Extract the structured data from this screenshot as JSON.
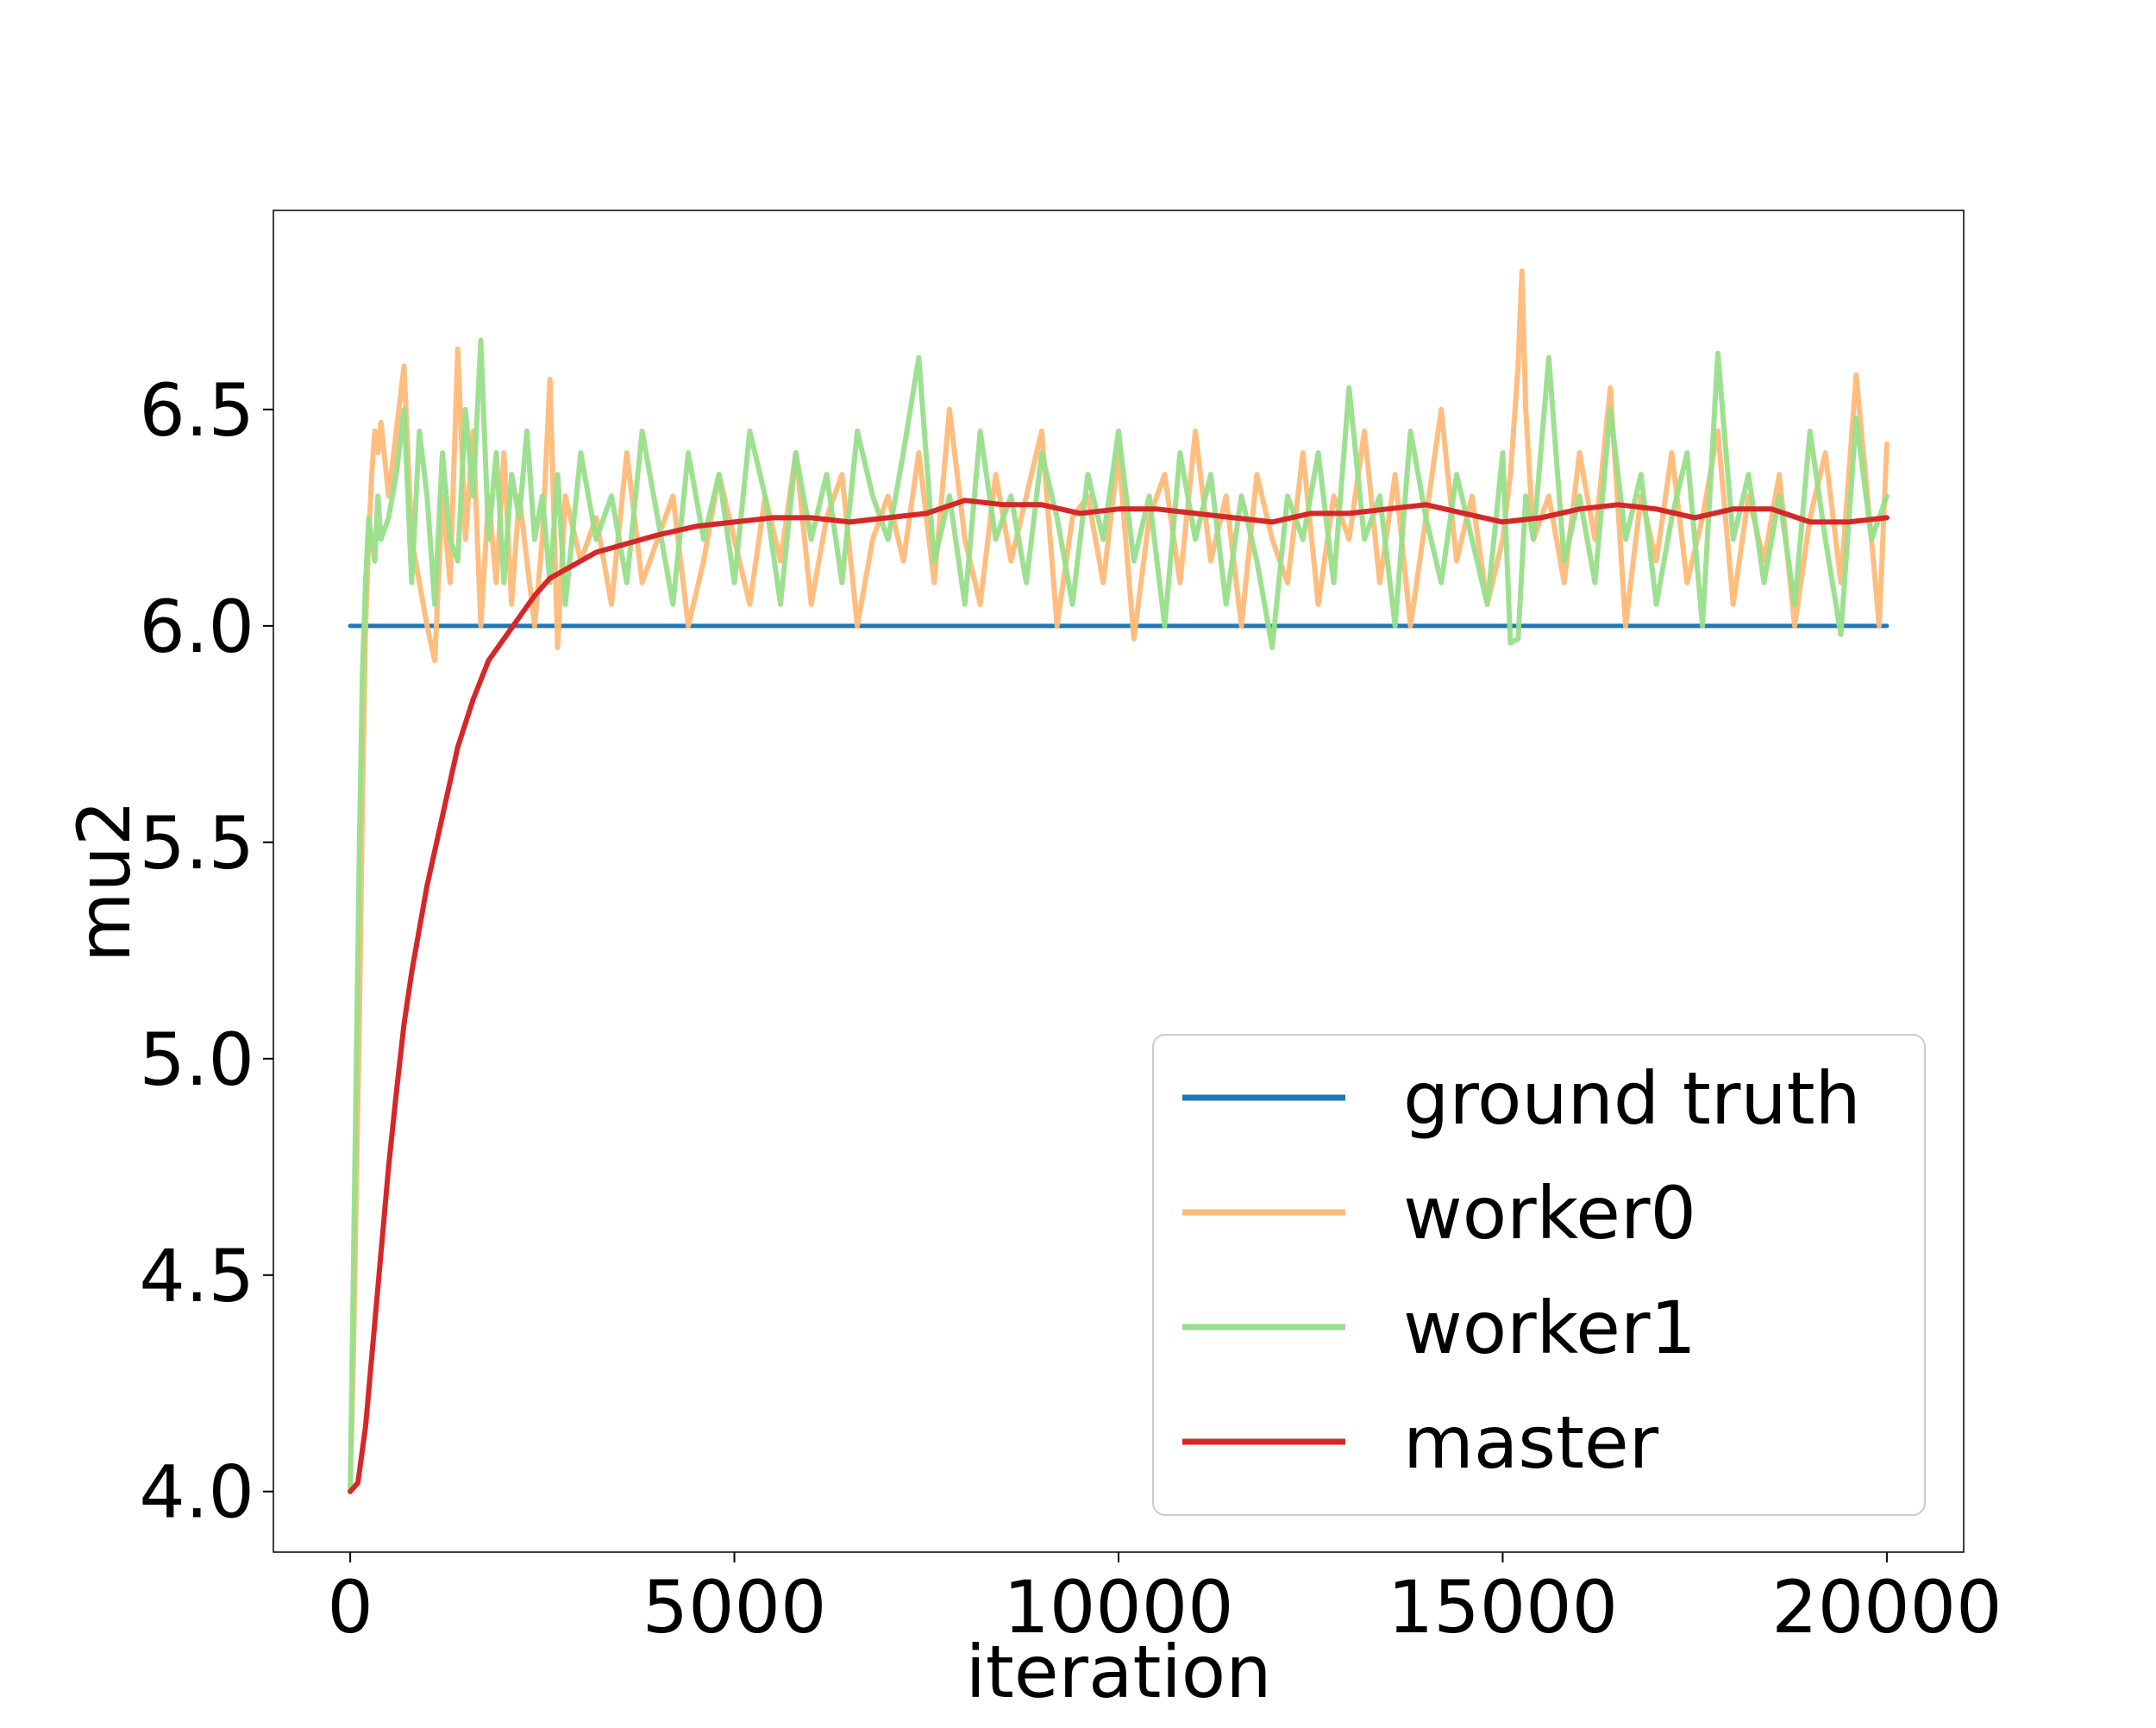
{
  "chart_data": {
    "type": "line",
    "title": "",
    "xlabel": "iteration",
    "ylabel": "mu2",
    "xlim": [
      -1000,
      21000
    ],
    "ylim": [
      3.86,
      6.96
    ],
    "xticks": [
      0,
      5000,
      10000,
      15000,
      20000
    ],
    "xtick_labels": [
      "0",
      "5000",
      "10000",
      "15000",
      "20000"
    ],
    "yticks": [
      4.0,
      4.5,
      5.0,
      5.5,
      6.0,
      6.5
    ],
    "ytick_labels": [
      "4.0",
      "4.5",
      "5.0",
      "5.5",
      "6.0",
      "6.5"
    ],
    "grid": false,
    "legend_position": "lower-right",
    "series": [
      {
        "name": "ground truth",
        "color": "#1f77b4",
        "x": [
          0,
          20000
        ],
        "y": [
          6.0,
          6.0
        ]
      },
      {
        "name": "worker0",
        "color": "#ffbb78",
        "x": [
          0,
          40,
          80,
          120,
          160,
          200,
          240,
          280,
          320,
          360,
          400,
          500,
          600,
          700,
          800,
          900,
          1000,
          1100,
          1200,
          1300,
          1400,
          1500,
          1600,
          1700,
          1800,
          1900,
          2000,
          2100,
          2200,
          2300,
          2400,
          2500,
          2600,
          2700,
          2800,
          3000,
          3200,
          3400,
          3600,
          3800,
          4000,
          4200,
          4400,
          4600,
          4800,
          5000,
          5200,
          5400,
          5600,
          5800,
          6000,
          6200,
          6400,
          6600,
          6800,
          7000,
          7200,
          7400,
          7600,
          7800,
          8000,
          8200,
          8400,
          8600,
          8800,
          9000,
          9200,
          9400,
          9600,
          9800,
          10000,
          10200,
          10400,
          10600,
          10800,
          11000,
          11200,
          11400,
          11600,
          11800,
          12000,
          12200,
          12400,
          12600,
          12800,
          13000,
          13200,
          13400,
          13600,
          13800,
          14000,
          14200,
          14400,
          14600,
          14800,
          15000,
          15100,
          15200,
          15250,
          15300,
          15400,
          15600,
          15800,
          16000,
          16200,
          16400,
          16600,
          16800,
          17000,
          17200,
          17400,
          17600,
          17800,
          18000,
          18200,
          18400,
          18600,
          18800,
          19000,
          19200,
          19400,
          19600,
          19800,
          19900,
          20000
        ],
        "y": [
          4.0,
          4.3,
          4.7,
          5.1,
          5.6,
          6.0,
          6.2,
          6.35,
          6.45,
          6.4,
          6.47,
          6.3,
          6.45,
          6.6,
          6.2,
          6.1,
          6.0,
          5.92,
          6.3,
          6.1,
          6.64,
          6.2,
          6.45,
          6.0,
          6.3,
          6.1,
          6.4,
          6.05,
          6.3,
          6.15,
          6.0,
          6.2,
          6.57,
          5.95,
          6.3,
          6.15,
          6.25,
          6.05,
          6.4,
          6.1,
          6.2,
          6.3,
          6.0,
          6.15,
          6.35,
          6.2,
          6.05,
          6.3,
          6.15,
          6.4,
          6.05,
          6.25,
          6.35,
          6.0,
          6.2,
          6.3,
          6.15,
          6.4,
          6.1,
          6.5,
          6.2,
          6.05,
          6.35,
          6.15,
          6.3,
          6.45,
          6.0,
          6.25,
          6.3,
          6.1,
          6.4,
          5.97,
          6.25,
          6.35,
          6.1,
          6.45,
          6.15,
          6.3,
          6.0,
          6.35,
          6.2,
          6.1,
          6.4,
          6.05,
          6.3,
          6.2,
          6.45,
          6.1,
          6.35,
          6.0,
          6.25,
          6.5,
          6.15,
          6.3,
          6.05,
          6.2,
          6.35,
          6.6,
          6.82,
          6.5,
          6.2,
          6.3,
          6.1,
          6.4,
          6.2,
          6.55,
          6.0,
          6.3,
          6.15,
          6.4,
          6.1,
          6.25,
          6.45,
          6.05,
          6.3,
          6.15,
          6.35,
          6.0,
          6.25,
          6.4,
          6.1,
          6.58,
          6.2,
          6.0,
          6.42
        ]
      },
      {
        "name": "worker1",
        "color": "#98df8a",
        "x": [
          0,
          40,
          80,
          120,
          160,
          200,
          240,
          280,
          320,
          360,
          400,
          500,
          600,
          700,
          800,
          900,
          1000,
          1100,
          1200,
          1300,
          1400,
          1500,
          1600,
          1700,
          1800,
          1900,
          2000,
          2100,
          2200,
          2300,
          2400,
          2500,
          2600,
          2700,
          2800,
          3000,
          3200,
          3400,
          3600,
          3800,
          4000,
          4200,
          4400,
          4600,
          4800,
          5000,
          5200,
          5400,
          5600,
          5800,
          6000,
          6200,
          6400,
          6600,
          6800,
          7000,
          7200,
          7400,
          7600,
          7800,
          8000,
          8200,
          8400,
          8600,
          8800,
          9000,
          9200,
          9400,
          9600,
          9800,
          10000,
          10200,
          10400,
          10600,
          10800,
          11000,
          11200,
          11400,
          11600,
          11800,
          12000,
          12200,
          12400,
          12600,
          12800,
          13000,
          13200,
          13400,
          13600,
          13800,
          14000,
          14200,
          14400,
          14600,
          14800,
          15000,
          15100,
          15200,
          15300,
          15400,
          15600,
          15800,
          16000,
          16200,
          16400,
          16600,
          16800,
          17000,
          17200,
          17400,
          17600,
          17800,
          18000,
          18200,
          18400,
          18600,
          18800,
          19000,
          19200,
          19400,
          19600,
          19800,
          19900,
          20000
        ],
        "y": [
          4.0,
          4.5,
          5.0,
          5.5,
          5.9,
          6.1,
          6.25,
          6.2,
          6.15,
          6.3,
          6.2,
          6.25,
          6.35,
          6.5,
          6.1,
          6.45,
          6.3,
          6.05,
          6.4,
          6.2,
          6.15,
          6.5,
          6.3,
          6.66,
          6.2,
          6.4,
          6.1,
          6.35,
          6.25,
          6.45,
          6.2,
          6.3,
          6.1,
          6.35,
          6.05,
          6.4,
          6.2,
          6.3,
          6.1,
          6.45,
          6.25,
          6.05,
          6.4,
          6.2,
          6.35,
          6.1,
          6.45,
          6.3,
          6.05,
          6.4,
          6.2,
          6.35,
          6.1,
          6.45,
          6.3,
          6.2,
          6.4,
          6.62,
          6.15,
          6.3,
          6.05,
          6.45,
          6.2,
          6.3,
          6.1,
          6.4,
          6.25,
          6.05,
          6.35,
          6.2,
          6.45,
          6.15,
          6.3,
          6.0,
          6.4,
          6.2,
          6.35,
          6.05,
          6.3,
          6.15,
          5.95,
          6.3,
          6.2,
          6.4,
          6.1,
          6.55,
          6.2,
          6.3,
          6.0,
          6.45,
          6.25,
          6.1,
          6.35,
          6.2,
          6.05,
          6.4,
          5.96,
          5.97,
          6.3,
          6.2,
          6.62,
          6.15,
          6.3,
          6.1,
          6.5,
          6.2,
          6.35,
          6.05,
          6.25,
          6.4,
          6.0,
          6.63,
          6.2,
          6.35,
          6.1,
          6.3,
          6.05,
          6.45,
          6.2,
          5.98,
          6.48,
          6.2,
          6.25,
          6.3
        ]
      },
      {
        "name": "master",
        "color": "#d62728",
        "x": [
          0,
          100,
          200,
          300,
          400,
          500,
          600,
          700,
          800,
          900,
          1000,
          1200,
          1400,
          1600,
          1800,
          2000,
          2200,
          2400,
          2600,
          2800,
          3000,
          3200,
          3400,
          3600,
          3800,
          4000,
          4500,
          5000,
          5500,
          6000,
          6500,
          7000,
          7500,
          8000,
          8500,
          9000,
          9500,
          10000,
          10500,
          11000,
          11500,
          12000,
          12500,
          13000,
          13500,
          14000,
          14500,
          15000,
          15500,
          16000,
          16500,
          17000,
          17500,
          18000,
          18500,
          19000,
          19500,
          20000
        ],
        "y": [
          4.0,
          4.02,
          4.15,
          4.35,
          4.55,
          4.75,
          4.92,
          5.08,
          5.2,
          5.3,
          5.4,
          5.56,
          5.72,
          5.83,
          5.92,
          5.97,
          6.02,
          6.07,
          6.11,
          6.13,
          6.15,
          6.17,
          6.18,
          6.19,
          6.2,
          6.21,
          6.23,
          6.24,
          6.25,
          6.25,
          6.24,
          6.25,
          6.26,
          6.29,
          6.28,
          6.28,
          6.26,
          6.27,
          6.27,
          6.26,
          6.25,
          6.24,
          6.26,
          6.26,
          6.27,
          6.28,
          6.26,
          6.24,
          6.25,
          6.27,
          6.28,
          6.27,
          6.25,
          6.27,
          6.27,
          6.24,
          6.24,
          6.25
        ]
      }
    ]
  }
}
